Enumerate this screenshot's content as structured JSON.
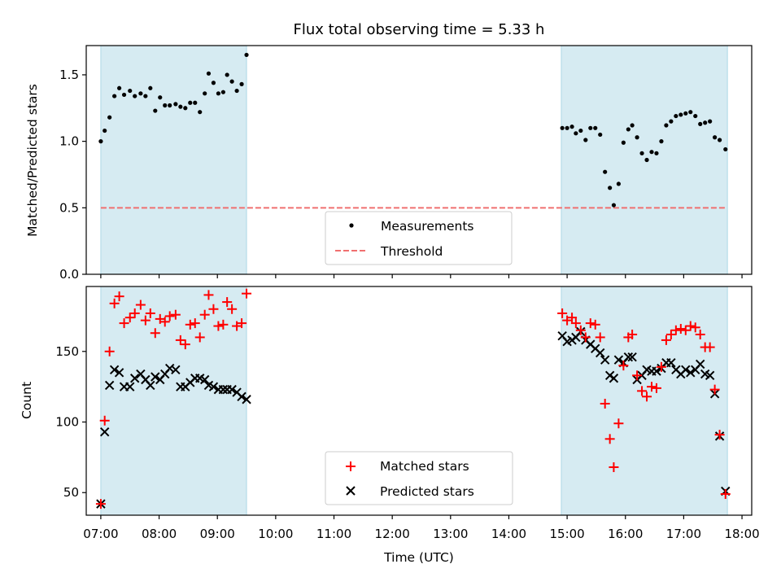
{
  "chart_data": [
    {
      "type": "scatter",
      "title": "Flux total observing time = 5.33 h",
      "xlabel": "",
      "ylabel": "Matched/Predicted stars",
      "xlim": [
        "06:45",
        "18:10"
      ],
      "ylim": [
        0,
        1.72
      ],
      "yticks": [
        0.0,
        0.5,
        1.0,
        1.5
      ],
      "ytick_labels": [
        "0.0",
        "0.5",
        "1.0",
        "1.5"
      ],
      "shaded_intervals": [
        [
          "07:00",
          "09:30"
        ],
        [
          "14:54",
          "17:45"
        ]
      ],
      "legend": {
        "position": "lower-center"
      },
      "series": [
        {
          "name": "Measurements",
          "marker": "dot",
          "color": "#000000",
          "points": [
            [
              "07:00",
              1.0
            ],
            [
              "07:04",
              1.08
            ],
            [
              "07:09",
              1.18
            ],
            [
              "07:14",
              1.34
            ],
            [
              "07:19",
              1.4
            ],
            [
              "07:24",
              1.35
            ],
            [
              "07:30",
              1.38
            ],
            [
              "07:35",
              1.34
            ],
            [
              "07:41",
              1.36
            ],
            [
              "07:46",
              1.34
            ],
            [
              "07:51",
              1.4
            ],
            [
              "07:56",
              1.23
            ],
            [
              "08:01",
              1.33
            ],
            [
              "08:06",
              1.27
            ],
            [
              "08:11",
              1.27
            ],
            [
              "08:17",
              1.28
            ],
            [
              "08:22",
              1.26
            ],
            [
              "08:27",
              1.25
            ],
            [
              "08:32",
              1.29
            ],
            [
              "08:37",
              1.29
            ],
            [
              "08:42",
              1.22
            ],
            [
              "08:47",
              1.36
            ],
            [
              "08:51",
              1.51
            ],
            [
              "08:56",
              1.44
            ],
            [
              "09:01",
              1.36
            ],
            [
              "09:06",
              1.37
            ],
            [
              "09:10",
              1.5
            ],
            [
              "09:15",
              1.45
            ],
            [
              "09:20",
              1.38
            ],
            [
              "09:25",
              1.43
            ],
            [
              "09:30",
              1.65
            ],
            [
              "14:55",
              1.1
            ],
            [
              "15:00",
              1.1
            ],
            [
              "15:05",
              1.11
            ],
            [
              "15:09",
              1.06
            ],
            [
              "15:14",
              1.08
            ],
            [
              "15:19",
              1.01
            ],
            [
              "15:24",
              1.1
            ],
            [
              "15:29",
              1.1
            ],
            [
              "15:34",
              1.05
            ],
            [
              "15:39",
              0.77
            ],
            [
              "15:44",
              0.65
            ],
            [
              "15:48",
              0.52
            ],
            [
              "15:53",
              0.68
            ],
            [
              "15:58",
              0.99
            ],
            [
              "16:03",
              1.09
            ],
            [
              "16:07",
              1.12
            ],
            [
              "16:12",
              1.03
            ],
            [
              "16:17",
              0.91
            ],
            [
              "16:22",
              0.86
            ],
            [
              "16:27",
              0.92
            ],
            [
              "16:32",
              0.91
            ],
            [
              "16:37",
              1.0
            ],
            [
              "16:42",
              1.12
            ],
            [
              "16:47",
              1.15
            ],
            [
              "16:52",
              1.19
            ],
            [
              "16:57",
              1.2
            ],
            [
              "17:02",
              1.21
            ],
            [
              "17:07",
              1.22
            ],
            [
              "17:12",
              1.19
            ],
            [
              "17:17",
              1.13
            ],
            [
              "17:22",
              1.14
            ],
            [
              "17:27",
              1.15
            ],
            [
              "17:32",
              1.03
            ],
            [
              "17:37",
              1.01
            ],
            [
              "17:43",
              0.94
            ]
          ]
        },
        {
          "name": "Threshold",
          "marker": "dashed-line",
          "color": "#f07070",
          "points": [
            [
              "07:00",
              0.5
            ],
            [
              "17:43",
              0.5
            ]
          ]
        }
      ]
    },
    {
      "type": "scatter",
      "title": "",
      "xlabel": "Time (UTC)",
      "ylabel": "Count",
      "xlim": [
        "06:45",
        "18:10"
      ],
      "ylim": [
        34,
        196
      ],
      "yticks": [
        50,
        100,
        150
      ],
      "ytick_labels": [
        "50",
        "100",
        "150"
      ],
      "xticks": [
        "07:00",
        "08:00",
        "09:00",
        "10:00",
        "11:00",
        "12:00",
        "13:00",
        "14:00",
        "15:00",
        "16:00",
        "17:00",
        "18:00"
      ],
      "xtick_labels": [
        "07:00",
        "08:00",
        "09:00",
        "10:00",
        "11:00",
        "12:00",
        "13:00",
        "14:00",
        "15:00",
        "16:00",
        "17:00",
        "18:00"
      ],
      "shaded_intervals": [
        [
          "07:00",
          "09:30"
        ],
        [
          "14:54",
          "17:45"
        ]
      ],
      "legend": {
        "position": "lower-center"
      },
      "series": [
        {
          "name": "Matched stars",
          "marker": "plus",
          "color": "#ff0000",
          "points": [
            [
              "07:00",
              42
            ],
            [
              "07:04",
              101
            ],
            [
              "07:09",
              150
            ],
            [
              "07:14",
              184
            ],
            [
              "07:19",
              189
            ],
            [
              "07:24",
              170
            ],
            [
              "07:30",
              174
            ],
            [
              "07:35",
              177
            ],
            [
              "07:41",
              183
            ],
            [
              "07:46",
              172
            ],
            [
              "07:51",
              177
            ],
            [
              "07:56",
              163
            ],
            [
              "08:01",
              173
            ],
            [
              "08:06",
              171
            ],
            [
              "08:11",
              175
            ],
            [
              "08:17",
              176
            ],
            [
              "08:22",
              158
            ],
            [
              "08:27",
              155
            ],
            [
              "08:32",
              169
            ],
            [
              "08:37",
              170
            ],
            [
              "08:42",
              160
            ],
            [
              "08:47",
              176
            ],
            [
              "08:51",
              190
            ],
            [
              "08:56",
              180
            ],
            [
              "09:01",
              168
            ],
            [
              "09:06",
              169
            ],
            [
              "09:10",
              185
            ],
            [
              "09:15",
              180
            ],
            [
              "09:20",
              168
            ],
            [
              "09:25",
              170
            ],
            [
              "09:30",
              191
            ],
            [
              "14:55",
              177
            ],
            [
              "15:00",
              172
            ],
            [
              "15:05",
              174
            ],
            [
              "15:09",
              170
            ],
            [
              "15:14",
              165
            ],
            [
              "15:19",
              160
            ],
            [
              "15:24",
              170
            ],
            [
              "15:29",
              169
            ],
            [
              "15:34",
              160
            ],
            [
              "15:39",
              113
            ],
            [
              "15:44",
              88
            ],
            [
              "15:48",
              68
            ],
            [
              "15:53",
              99
            ],
            [
              "15:58",
              140
            ],
            [
              "16:03",
              160
            ],
            [
              "16:07",
              162
            ],
            [
              "16:12",
              133
            ],
            [
              "16:17",
              122
            ],
            [
              "16:22",
              118
            ],
            [
              "16:27",
              125
            ],
            [
              "16:32",
              124
            ],
            [
              "16:37",
              139
            ],
            [
              "16:42",
              158
            ],
            [
              "16:47",
              162
            ],
            [
              "16:52",
              165
            ],
            [
              "16:57",
              166
            ],
            [
              "17:02",
              165
            ],
            [
              "17:07",
              168
            ],
            [
              "17:12",
              167
            ],
            [
              "17:17",
              162
            ],
            [
              "17:22",
              153
            ],
            [
              "17:27",
              153
            ],
            [
              "17:32",
              123
            ],
            [
              "17:37",
              91
            ],
            [
              "17:43",
              49
            ]
          ]
        },
        {
          "name": "Predicted stars",
          "marker": "x",
          "color": "#000000",
          "points": [
            [
              "07:00",
              42
            ],
            [
              "07:04",
              93
            ],
            [
              "07:09",
              126
            ],
            [
              "07:14",
              137
            ],
            [
              "07:19",
              135
            ],
            [
              "07:24",
              125
            ],
            [
              "07:30",
              125
            ],
            [
              "07:35",
              131
            ],
            [
              "07:41",
              134
            ],
            [
              "07:46",
              130
            ],
            [
              "07:51",
              126
            ],
            [
              "07:56",
              132
            ],
            [
              "08:01",
              130
            ],
            [
              "08:06",
              134
            ],
            [
              "08:11",
              138
            ],
            [
              "08:17",
              137
            ],
            [
              "08:22",
              125
            ],
            [
              "08:27",
              125
            ],
            [
              "08:32",
              128
            ],
            [
              "08:37",
              131
            ],
            [
              "08:42",
              131
            ],
            [
              "08:47",
              130
            ],
            [
              "08:51",
              126
            ],
            [
              "08:56",
              125
            ],
            [
              "09:01",
              123
            ],
            [
              "09:06",
              123
            ],
            [
              "09:10",
              123
            ],
            [
              "09:15",
              123
            ],
            [
              "09:20",
              121
            ],
            [
              "09:25",
              118
            ],
            [
              "09:30",
              116
            ],
            [
              "14:55",
              161
            ],
            [
              "15:00",
              157
            ],
            [
              "15:05",
              158
            ],
            [
              "15:09",
              160
            ],
            [
              "15:14",
              164
            ],
            [
              "15:19",
              158
            ],
            [
              "15:24",
              155
            ],
            [
              "15:29",
              152
            ],
            [
              "15:34",
              149
            ],
            [
              "15:39",
              144
            ],
            [
              "15:44",
              133
            ],
            [
              "15:48",
              131
            ],
            [
              "15:53",
              144
            ],
            [
              "15:58",
              142
            ],
            [
              "16:03",
              146
            ],
            [
              "16:07",
              146
            ],
            [
              "16:12",
              130
            ],
            [
              "16:17",
              133
            ],
            [
              "16:22",
              137
            ],
            [
              "16:27",
              136
            ],
            [
              "16:32",
              136
            ],
            [
              "16:37",
              138
            ],
            [
              "16:42",
              142
            ],
            [
              "16:47",
              142
            ],
            [
              "16:52",
              137
            ],
            [
              "16:57",
              134
            ],
            [
              "17:02",
              137
            ],
            [
              "17:07",
              135
            ],
            [
              "17:12",
              137
            ],
            [
              "17:17",
              141
            ],
            [
              "17:22",
              134
            ],
            [
              "17:27",
              133
            ],
            [
              "17:32",
              120
            ],
            [
              "17:37",
              90
            ],
            [
              "17:43",
              51
            ]
          ]
        }
      ]
    }
  ]
}
